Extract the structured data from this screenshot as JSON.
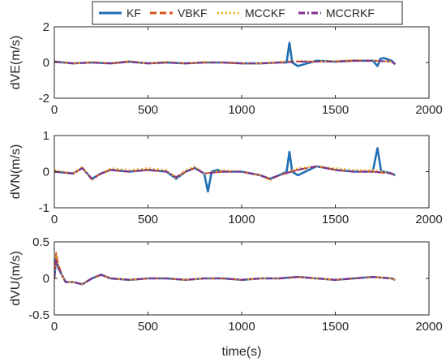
{
  "legend": {
    "entries": [
      {
        "name": "KF",
        "color": "#1f6fb4",
        "dash": "solid"
      },
      {
        "name": "VBKF",
        "color": "#d95319",
        "dash": "dashed"
      },
      {
        "name": "MCCKF",
        "color": "#edb120",
        "dash": "dotted"
      },
      {
        "name": "MCCRKF",
        "color": "#7e2f8e",
        "dash": "dashdot"
      }
    ]
  },
  "colors": {
    "KF": "#1f6fb4",
    "VBKF": "#d95319",
    "MCCKF": "#edb120",
    "MCCRKF": "#7e2f8e",
    "axis": "#262626"
  },
  "chart_data": [
    {
      "type": "line",
      "xlabel": "",
      "ylabel": "dVE(m/s)",
      "xlim": [
        0,
        2000
      ],
      "ylim": [
        -2,
        2
      ],
      "xticks": [
        0,
        500,
        1000,
        1500,
        2000
      ],
      "yticks": [
        -2,
        0,
        2
      ],
      "grid": false,
      "series": [
        {
          "name": "KF",
          "color": "#1f6fb4",
          "x": [
            0,
            100,
            200,
            300,
            400,
            500,
            600,
            700,
            800,
            900,
            1000,
            1100,
            1200,
            1240,
            1255,
            1270,
            1300,
            1400,
            1500,
            1600,
            1700,
            1725,
            1740,
            1760,
            1800,
            1820
          ],
          "y": [
            0.05,
            -0.05,
            0.0,
            -0.05,
            0.05,
            -0.05,
            0.0,
            -0.05,
            0.0,
            0.0,
            -0.05,
            -0.05,
            0.0,
            0.0,
            1.1,
            0.0,
            -0.2,
            0.1,
            0.05,
            0.1,
            0.1,
            -0.2,
            0.2,
            0.25,
            0.1,
            -0.1
          ]
        },
        {
          "name": "VBKF",
          "color": "#d95319",
          "x": [
            0,
            100,
            200,
            300,
            400,
            500,
            600,
            700,
            800,
            900,
            1000,
            1100,
            1200,
            1300,
            1400,
            1500,
            1600,
            1700,
            1800,
            1820
          ],
          "y": [
            0.05,
            -0.05,
            0.0,
            -0.05,
            0.05,
            -0.05,
            0.0,
            -0.05,
            0.0,
            0.0,
            -0.05,
            -0.05,
            0.0,
            0.05,
            0.05,
            0.05,
            0.1,
            0.1,
            0.05,
            -0.1
          ]
        },
        {
          "name": "MCCKF",
          "color": "#edb120",
          "x": [
            0,
            100,
            200,
            300,
            400,
            500,
            600,
            700,
            800,
            900,
            1000,
            1100,
            1200,
            1300,
            1400,
            1500,
            1600,
            1700,
            1800,
            1820
          ],
          "y": [
            0.08,
            -0.08,
            0.05,
            -0.05,
            0.1,
            -0.05,
            0.05,
            -0.05,
            0.05,
            0.0,
            -0.05,
            -0.05,
            0.05,
            0.1,
            0.05,
            0.1,
            0.15,
            0.1,
            0.05,
            -0.1
          ]
        },
        {
          "name": "MCCRKF",
          "color": "#7e2f8e",
          "x": [
            0,
            100,
            200,
            300,
            400,
            500,
            600,
            700,
            800,
            900,
            1000,
            1100,
            1200,
            1300,
            1400,
            1500,
            1600,
            1700,
            1800,
            1820
          ],
          "y": [
            0.05,
            -0.05,
            0.0,
            -0.05,
            0.05,
            -0.05,
            0.0,
            -0.05,
            0.0,
            0.0,
            -0.05,
            -0.05,
            0.0,
            0.05,
            0.05,
            0.05,
            0.1,
            0.1,
            0.05,
            -0.1
          ]
        }
      ]
    },
    {
      "type": "line",
      "xlabel": "",
      "ylabel": "dVN(m/s)",
      "xlim": [
        0,
        2000
      ],
      "ylim": [
        -1,
        1
      ],
      "xticks": [
        0,
        500,
        1000,
        1500,
        2000
      ],
      "yticks": [
        -1,
        0,
        1
      ],
      "grid": false,
      "series": [
        {
          "name": "KF",
          "color": "#1f6fb4",
          "x": [
            0,
            100,
            150,
            200,
            250,
            300,
            400,
            500,
            600,
            650,
            700,
            750,
            800,
            820,
            840,
            870,
            900,
            1000,
            1100,
            1150,
            1200,
            1240,
            1255,
            1270,
            1300,
            1400,
            1500,
            1600,
            1700,
            1725,
            1745,
            1760,
            1800,
            1820
          ],
          "y": [
            0.0,
            -0.05,
            0.1,
            -0.2,
            -0.05,
            0.05,
            0.0,
            0.05,
            0.0,
            -0.2,
            0.0,
            0.1,
            -0.05,
            -0.55,
            0.0,
            0.05,
            0.0,
            0.0,
            -0.1,
            -0.2,
            -0.1,
            0.0,
            0.55,
            0.0,
            -0.1,
            0.15,
            0.05,
            0.0,
            0.0,
            0.65,
            0.0,
            0.0,
            -0.05,
            -0.1
          ]
        },
        {
          "name": "VBKF",
          "color": "#d95319",
          "x": [
            0,
            100,
            150,
            200,
            250,
            300,
            400,
            500,
            600,
            650,
            700,
            750,
            800,
            900,
            1000,
            1100,
            1150,
            1200,
            1300,
            1400,
            1500,
            1600,
            1700,
            1800,
            1820
          ],
          "y": [
            0.0,
            -0.05,
            0.1,
            -0.2,
            -0.05,
            0.05,
            0.0,
            0.05,
            0.0,
            -0.15,
            0.0,
            0.1,
            -0.05,
            0.0,
            0.0,
            -0.1,
            -0.2,
            -0.1,
            0.05,
            0.15,
            0.05,
            0.0,
            0.0,
            -0.05,
            -0.1
          ]
        },
        {
          "name": "MCCKF",
          "color": "#edb120",
          "x": [
            0,
            100,
            150,
            200,
            250,
            300,
            400,
            500,
            600,
            650,
            700,
            750,
            800,
            900,
            1000,
            1100,
            1150,
            1200,
            1300,
            1400,
            1500,
            1600,
            1700,
            1800,
            1820
          ],
          "y": [
            0.05,
            -0.05,
            0.15,
            -0.25,
            -0.05,
            0.1,
            0.05,
            0.1,
            0.05,
            -0.2,
            0.05,
            0.15,
            -0.05,
            0.05,
            0.0,
            -0.1,
            -0.25,
            -0.1,
            0.1,
            0.15,
            0.1,
            0.05,
            0.05,
            -0.05,
            -0.15
          ]
        },
        {
          "name": "MCCRKF",
          "color": "#7e2f8e",
          "x": [
            0,
            100,
            150,
            200,
            250,
            300,
            400,
            500,
            600,
            650,
            700,
            750,
            800,
            900,
            1000,
            1100,
            1150,
            1200,
            1300,
            1400,
            1500,
            1600,
            1700,
            1800,
            1820
          ],
          "y": [
            0.0,
            -0.05,
            0.1,
            -0.2,
            -0.05,
            0.05,
            0.0,
            0.05,
            0.0,
            -0.15,
            0.0,
            0.1,
            -0.05,
            0.0,
            0.0,
            -0.1,
            -0.2,
            -0.1,
            0.05,
            0.15,
            0.05,
            0.0,
            0.0,
            -0.05,
            -0.1
          ]
        }
      ]
    },
    {
      "type": "line",
      "xlabel": "time(s)",
      "ylabel": "dVU(m/s)",
      "xlim": [
        0,
        2000
      ],
      "ylim": [
        -0.5,
        0.5
      ],
      "xticks": [
        0,
        500,
        1000,
        1500,
        2000
      ],
      "yticks": [
        -0.5,
        0,
        0.5
      ],
      "grid": false,
      "series": [
        {
          "name": "KF",
          "color": "#1f6fb4",
          "x": [
            0,
            10,
            20,
            40,
            60,
            100,
            150,
            200,
            250,
            300,
            400,
            500,
            600,
            700,
            800,
            900,
            1000,
            1100,
            1200,
            1300,
            1400,
            1500,
            1600,
            1700,
            1800,
            1820
          ],
          "y": [
            0.0,
            0.3,
            0.15,
            0.05,
            -0.05,
            -0.05,
            -0.08,
            0.0,
            0.05,
            0.0,
            -0.02,
            0.0,
            0.0,
            -0.02,
            0.0,
            0.0,
            -0.02,
            0.0,
            0.0,
            0.02,
            0.0,
            -0.02,
            0.0,
            0.02,
            0.0,
            -0.02
          ]
        },
        {
          "name": "VBKF",
          "color": "#d95319",
          "x": [
            0,
            10,
            20,
            40,
            60,
            100,
            150,
            200,
            250,
            300,
            400,
            500,
            600,
            700,
            800,
            900,
            1000,
            1100,
            1200,
            1300,
            1400,
            1500,
            1600,
            1700,
            1800,
            1820
          ],
          "y": [
            0.0,
            0.35,
            0.2,
            0.05,
            -0.05,
            -0.05,
            -0.08,
            0.0,
            0.05,
            0.0,
            -0.02,
            0.0,
            0.0,
            -0.02,
            0.0,
            0.0,
            -0.02,
            0.0,
            0.0,
            0.02,
            0.0,
            -0.02,
            0.0,
            0.02,
            0.0,
            -0.02
          ]
        },
        {
          "name": "MCCKF",
          "color": "#edb120",
          "x": [
            0,
            10,
            20,
            40,
            60,
            100,
            150,
            200,
            250,
            300,
            400,
            500,
            600,
            700,
            800,
            900,
            1000,
            1100,
            1200,
            1300,
            1400,
            1500,
            1600,
            1700,
            1800,
            1820
          ],
          "y": [
            0.0,
            0.3,
            0.15,
            0.05,
            -0.05,
            -0.05,
            -0.08,
            0.0,
            0.05,
            0.0,
            -0.02,
            0.0,
            0.0,
            -0.02,
            0.0,
            0.0,
            -0.02,
            0.0,
            0.0,
            0.02,
            0.0,
            -0.02,
            0.0,
            0.02,
            0.0,
            -0.02
          ]
        },
        {
          "name": "MCCRKF",
          "color": "#7e2f8e",
          "x": [
            0,
            10,
            20,
            40,
            60,
            100,
            150,
            200,
            250,
            300,
            400,
            500,
            600,
            700,
            800,
            900,
            1000,
            1100,
            1200,
            1300,
            1400,
            1500,
            1600,
            1700,
            1800,
            1820
          ],
          "y": [
            0.0,
            0.25,
            0.15,
            0.05,
            -0.05,
            -0.05,
            -0.08,
            0.0,
            0.05,
            0.0,
            -0.02,
            0.0,
            0.0,
            -0.02,
            0.0,
            0.0,
            -0.02,
            0.0,
            0.0,
            0.02,
            0.0,
            -0.02,
            0.0,
            0.02,
            0.0,
            -0.02
          ]
        }
      ]
    }
  ]
}
